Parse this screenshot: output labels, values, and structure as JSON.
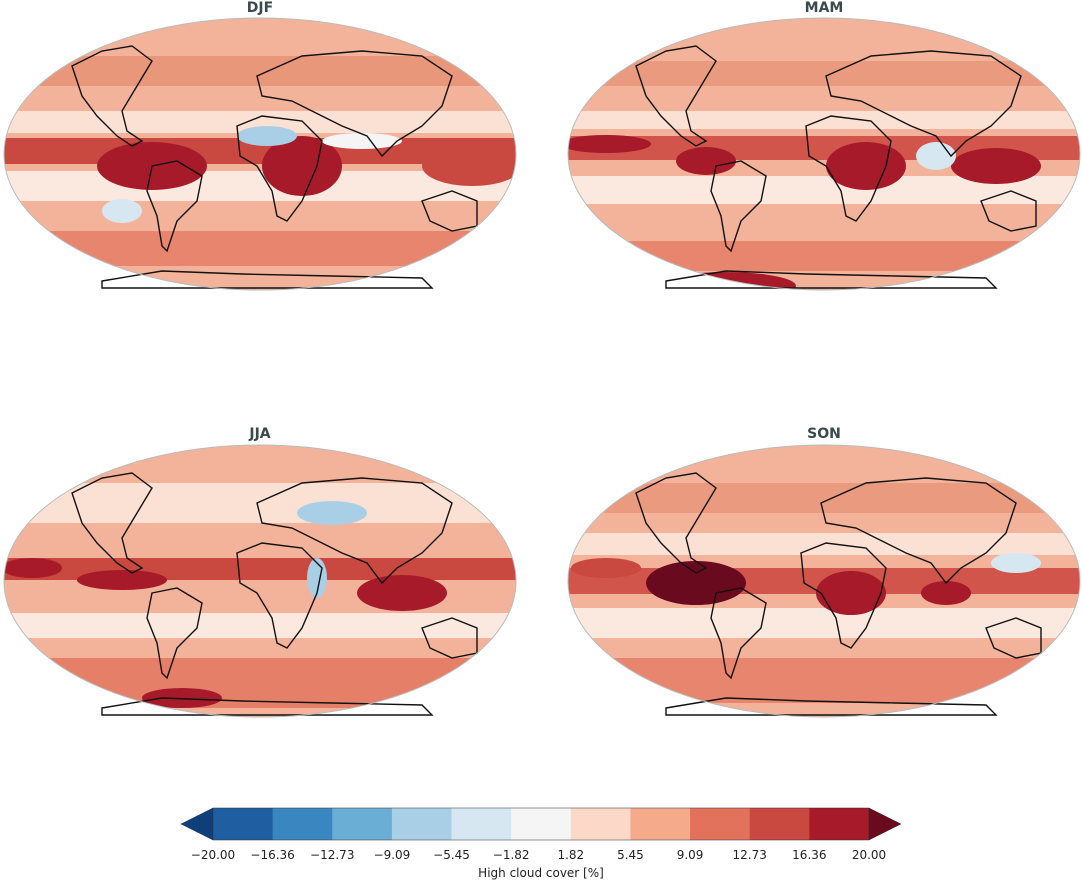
{
  "panels": [
    {
      "title": "DJF"
    },
    {
      "title": "MAM"
    },
    {
      "title": "JJA"
    },
    {
      "title": "SON"
    }
  ],
  "colorbar": {
    "label": "High cloud cover [%]",
    "ticks": [
      "−20.00",
      "−16.36",
      "−12.73",
      "−9.09",
      "−5.45",
      "−1.82",
      "1.82",
      "5.45",
      "9.09",
      "12.73",
      "16.36",
      "20.00"
    ],
    "colors": [
      "#1f5fa1",
      "#3a86c0",
      "#6aaed5",
      "#a9cfe6",
      "#d6e7f1",
      "#f5f5f5",
      "#fbd8c7",
      "#f4aa8b",
      "#e2725b",
      "#c94840",
      "#a61a2a",
      "#6a0a1e"
    ],
    "extend_low_color": "#0f3f7a",
    "extend_high_color": "#6a0a1e"
  },
  "colors": {
    "ocean_base": "#f2b39a",
    "land_outline": "#111111",
    "map_border": "#bbbbbb"
  }
}
